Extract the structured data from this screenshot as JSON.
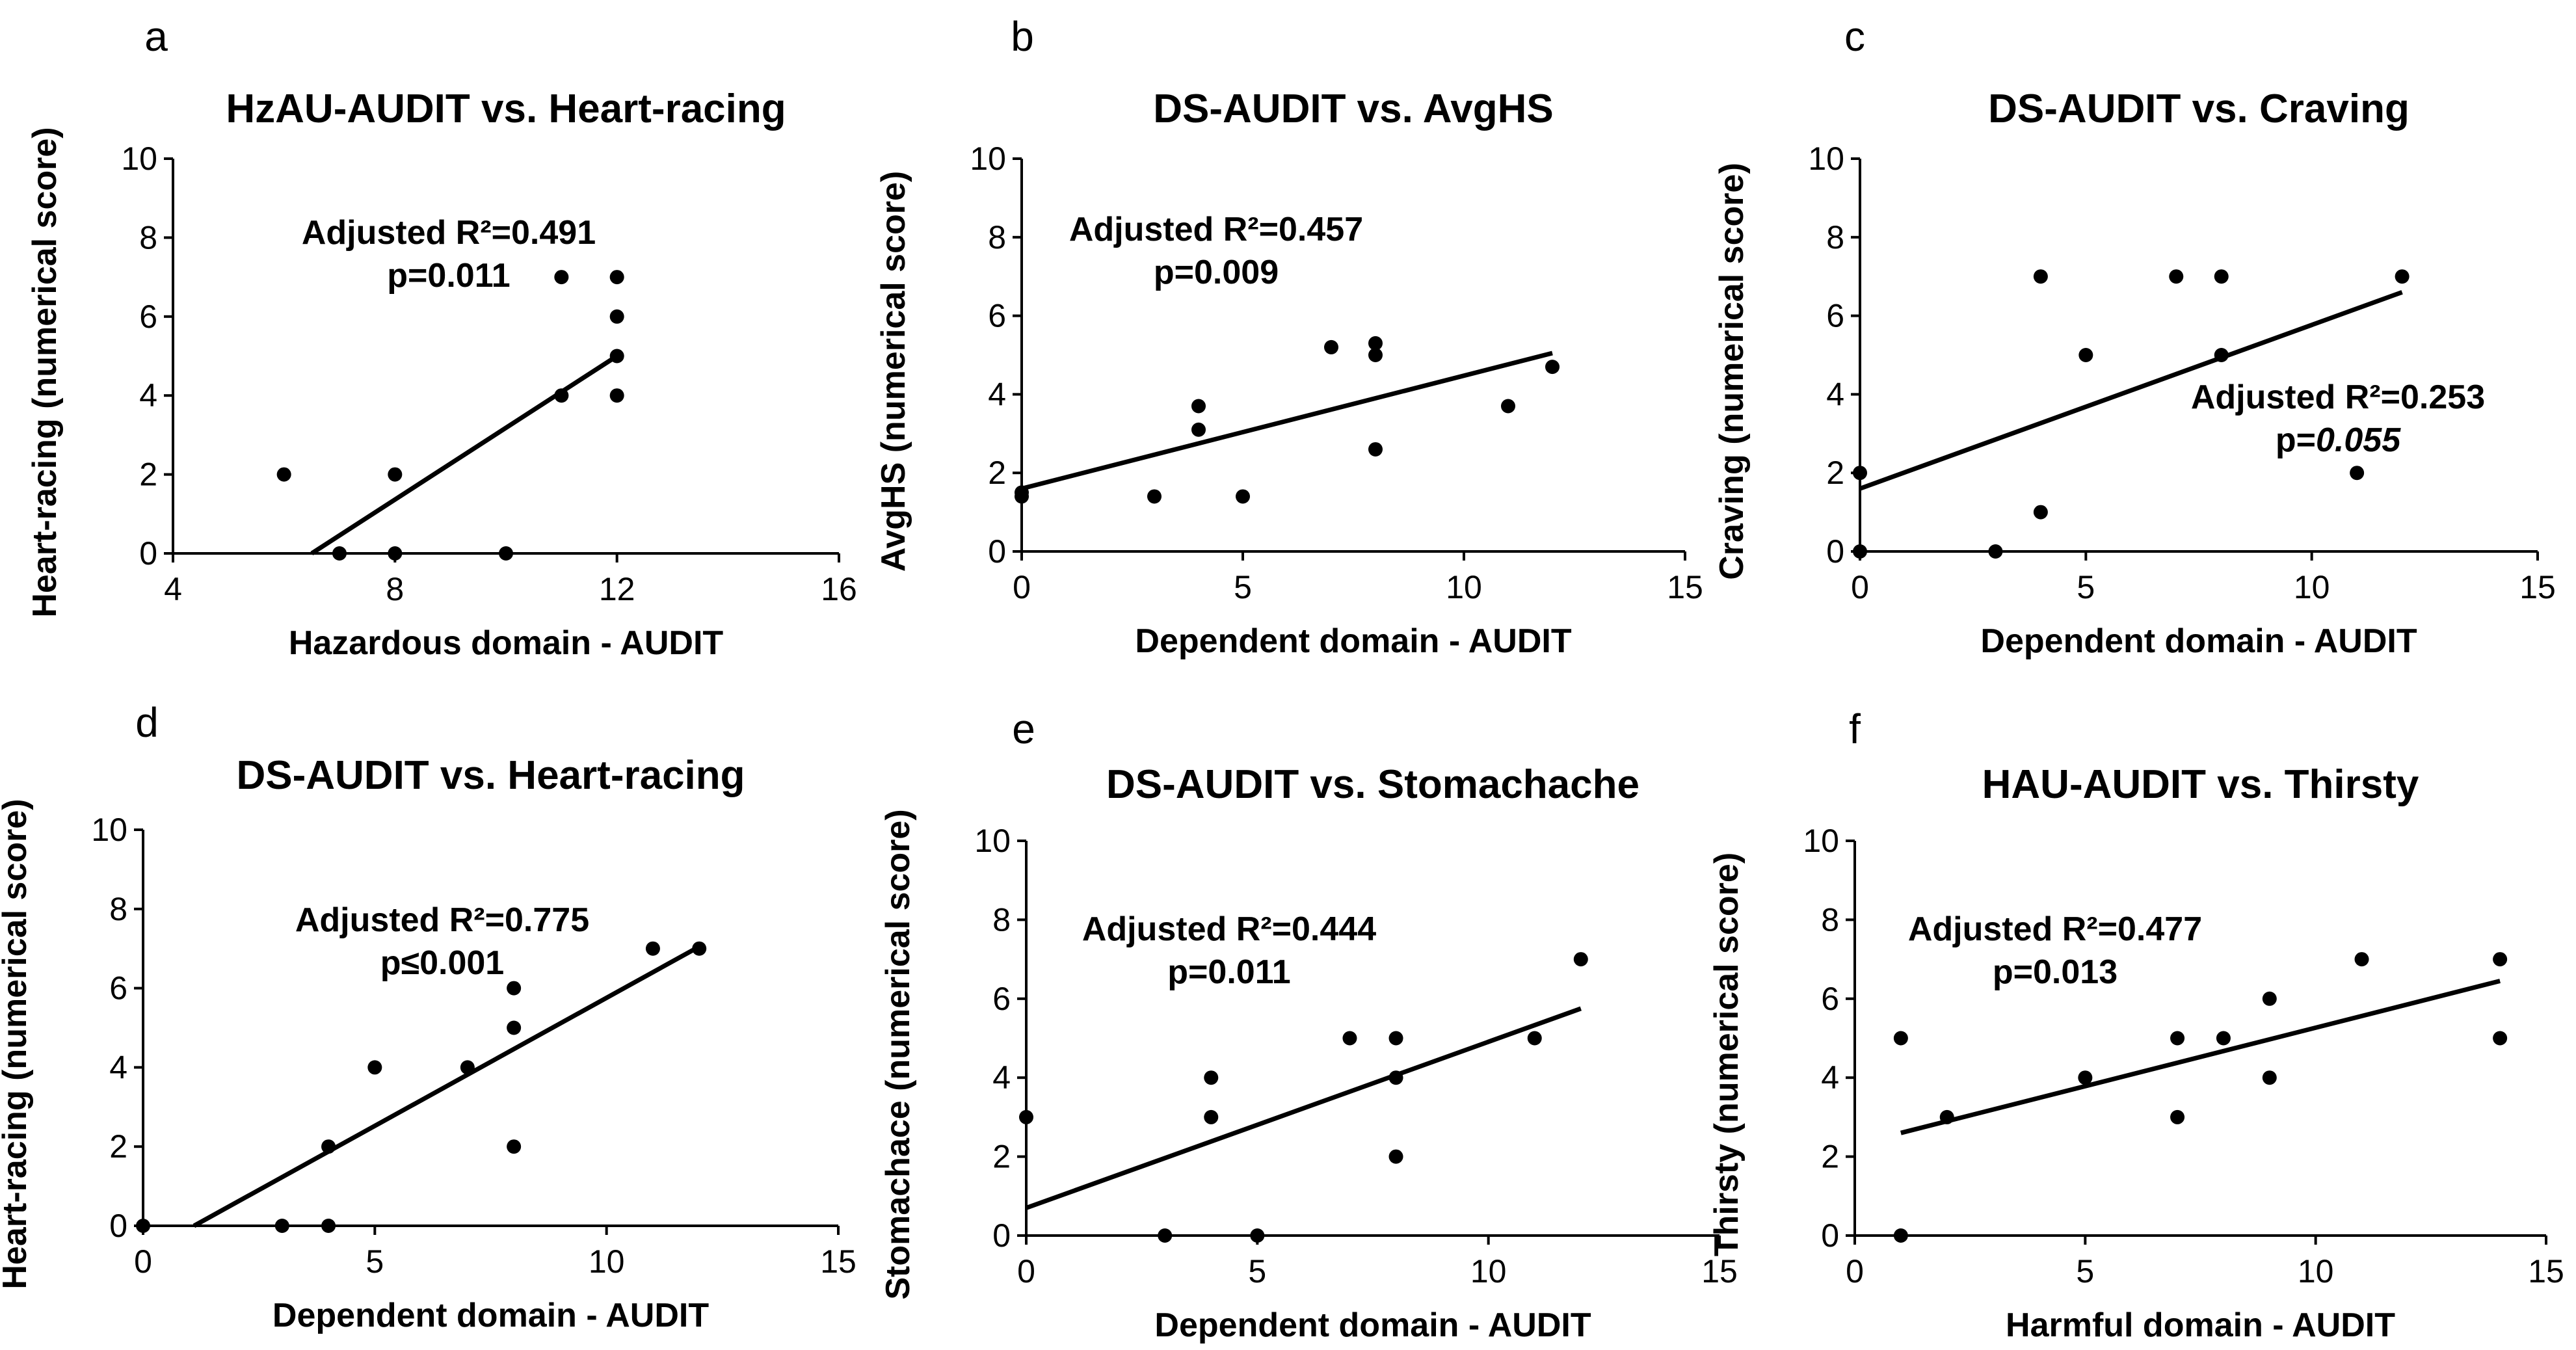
{
  "chart_data": [
    {
      "type": "scatter",
      "panel": "a",
      "title": "HzAU-AUDIT vs. Heart-racing",
      "xlabel": "Hazardous domain - AUDIT",
      "ylabel": "Heart-racing (numerical score)",
      "xlim": [
        4,
        16
      ],
      "ylim": [
        0,
        10
      ],
      "xticks": [
        4,
        8,
        12,
        16
      ],
      "yticks": [
        0,
        2,
        4,
        6,
        8,
        10
      ],
      "points": [
        [
          6,
          2
        ],
        [
          7,
          0
        ],
        [
          8,
          2
        ],
        [
          8,
          0
        ],
        [
          10,
          0
        ],
        [
          11,
          7
        ],
        [
          11,
          4
        ],
        [
          12,
          7
        ],
        [
          12,
          6
        ],
        [
          12,
          5
        ],
        [
          12,
          4
        ]
      ],
      "trendline": [
        [
          6.5,
          0
        ],
        [
          12,
          5
        ]
      ],
      "annotation": [
        "Adjusted R²=0.491",
        "p=0.011"
      ],
      "annotation_italic_value": ""
    },
    {
      "type": "scatter",
      "panel": "b",
      "title": "DS-AUDIT vs. AvgHS",
      "xlabel": "Dependent domain - AUDIT",
      "ylabel": "AvgHS (numerical score)",
      "xlim": [
        0,
        15
      ],
      "ylim": [
        0,
        10
      ],
      "xticks": [
        0,
        5,
        10,
        15
      ],
      "yticks": [
        0,
        2,
        4,
        6,
        8,
        10
      ],
      "points": [
        [
          0,
          1.5
        ],
        [
          0,
          1.4
        ],
        [
          3,
          1.4
        ],
        [
          4,
          3.7
        ],
        [
          4,
          3.1
        ],
        [
          5,
          1.4
        ],
        [
          7,
          5.2
        ],
        [
          8,
          5.3
        ],
        [
          8,
          5.0
        ],
        [
          8,
          2.6
        ],
        [
          11,
          3.7
        ],
        [
          12,
          4.7
        ]
      ],
      "trendline": [
        [
          0,
          1.6
        ],
        [
          12,
          5.05
        ]
      ],
      "annotation": [
        "Adjusted R²=0.457",
        "p=0.009"
      ],
      "annotation_italic_value": ""
    },
    {
      "type": "scatter",
      "panel": "c",
      "title": "DS-AUDIT vs. Craving",
      "xlabel": "Dependent domain - AUDIT",
      "ylabel": "Craving (numerical score)",
      "xlim": [
        0,
        15
      ],
      "ylim": [
        0,
        10
      ],
      "xticks": [
        0,
        5,
        10,
        15
      ],
      "yticks": [
        0,
        2,
        4,
        6,
        8,
        10
      ],
      "points": [
        [
          0,
          2
        ],
        [
          0,
          0
        ],
        [
          3,
          0
        ],
        [
          4,
          7
        ],
        [
          4,
          1
        ],
        [
          5,
          5
        ],
        [
          7,
          7
        ],
        [
          8,
          7
        ],
        [
          8,
          5
        ],
        [
          11,
          2
        ],
        [
          12,
          7
        ]
      ],
      "trendline": [
        [
          0,
          1.6
        ],
        [
          12,
          6.6
        ]
      ],
      "annotation": [
        "Adjusted R²=0.253",
        "p="
      ],
      "annotation_italic_value": "0.055"
    },
    {
      "type": "scatter",
      "panel": "d",
      "title": "DS-AUDIT vs. Heart-racing",
      "xlabel": "Dependent domain - AUDIT",
      "ylabel": "Heart-racing (numerical score)",
      "xlim": [
        0,
        15
      ],
      "ylim": [
        0,
        10
      ],
      "xticks": [
        0,
        5,
        10,
        15
      ],
      "yticks": [
        0,
        2,
        4,
        6,
        8,
        10
      ],
      "points": [
        [
          0,
          0
        ],
        [
          3,
          0
        ],
        [
          4,
          0
        ],
        [
          4,
          2
        ],
        [
          5,
          4
        ],
        [
          7,
          4
        ],
        [
          8,
          6
        ],
        [
          8,
          5
        ],
        [
          8,
          2
        ],
        [
          11,
          7
        ],
        [
          12,
          7
        ]
      ],
      "trendline": [
        [
          1.1,
          0
        ],
        [
          12,
          7.05
        ]
      ],
      "annotation": [
        "Adjusted R²=0.775",
        "p≤0.001"
      ],
      "annotation_italic_value": ""
    },
    {
      "type": "scatter",
      "panel": "e",
      "title": "DS-AUDIT vs. Stomachache",
      "xlabel": "Dependent domain - AUDIT",
      "ylabel": "Stomachace (numerical score)",
      "xlim": [
        0,
        15
      ],
      "ylim": [
        0,
        10
      ],
      "xticks": [
        0,
        5,
        10,
        15
      ],
      "yticks": [
        0,
        2,
        4,
        6,
        8,
        10
      ],
      "points": [
        [
          0,
          3
        ],
        [
          3,
          0
        ],
        [
          4,
          4
        ],
        [
          4,
          3
        ],
        [
          5,
          0
        ],
        [
          7,
          5
        ],
        [
          8,
          5
        ],
        [
          8,
          4
        ],
        [
          8,
          2
        ],
        [
          11,
          5
        ],
        [
          12,
          7
        ]
      ],
      "trendline": [
        [
          0,
          0.7
        ],
        [
          12,
          5.75
        ]
      ],
      "annotation": [
        "Adjusted R²=0.444",
        "p=0.011"
      ],
      "annotation_italic_value": ""
    },
    {
      "type": "scatter",
      "panel": "f",
      "title": "HAU-AUDIT vs. Thirsty",
      "xlabel": "Harmful domain - AUDIT",
      "ylabel": "Thirsty (numerical score)",
      "xlim": [
        0,
        15
      ],
      "ylim": [
        0,
        10
      ],
      "xticks": [
        0,
        5,
        10,
        15
      ],
      "yticks": [
        0,
        2,
        4,
        6,
        8,
        10
      ],
      "points": [
        [
          1,
          5
        ],
        [
          1,
          0
        ],
        [
          2,
          3
        ],
        [
          5,
          4
        ],
        [
          7,
          5
        ],
        [
          7,
          3
        ],
        [
          8,
          5
        ],
        [
          9,
          6
        ],
        [
          9,
          4
        ],
        [
          11,
          7
        ],
        [
          14,
          7
        ],
        [
          14,
          5
        ]
      ],
      "trendline": [
        [
          1,
          2.6
        ],
        [
          14,
          6.45
        ]
      ],
      "annotation": [
        "Adjusted R²=0.477",
        "p=0.013"
      ],
      "annotation_italic_value": ""
    }
  ]
}
